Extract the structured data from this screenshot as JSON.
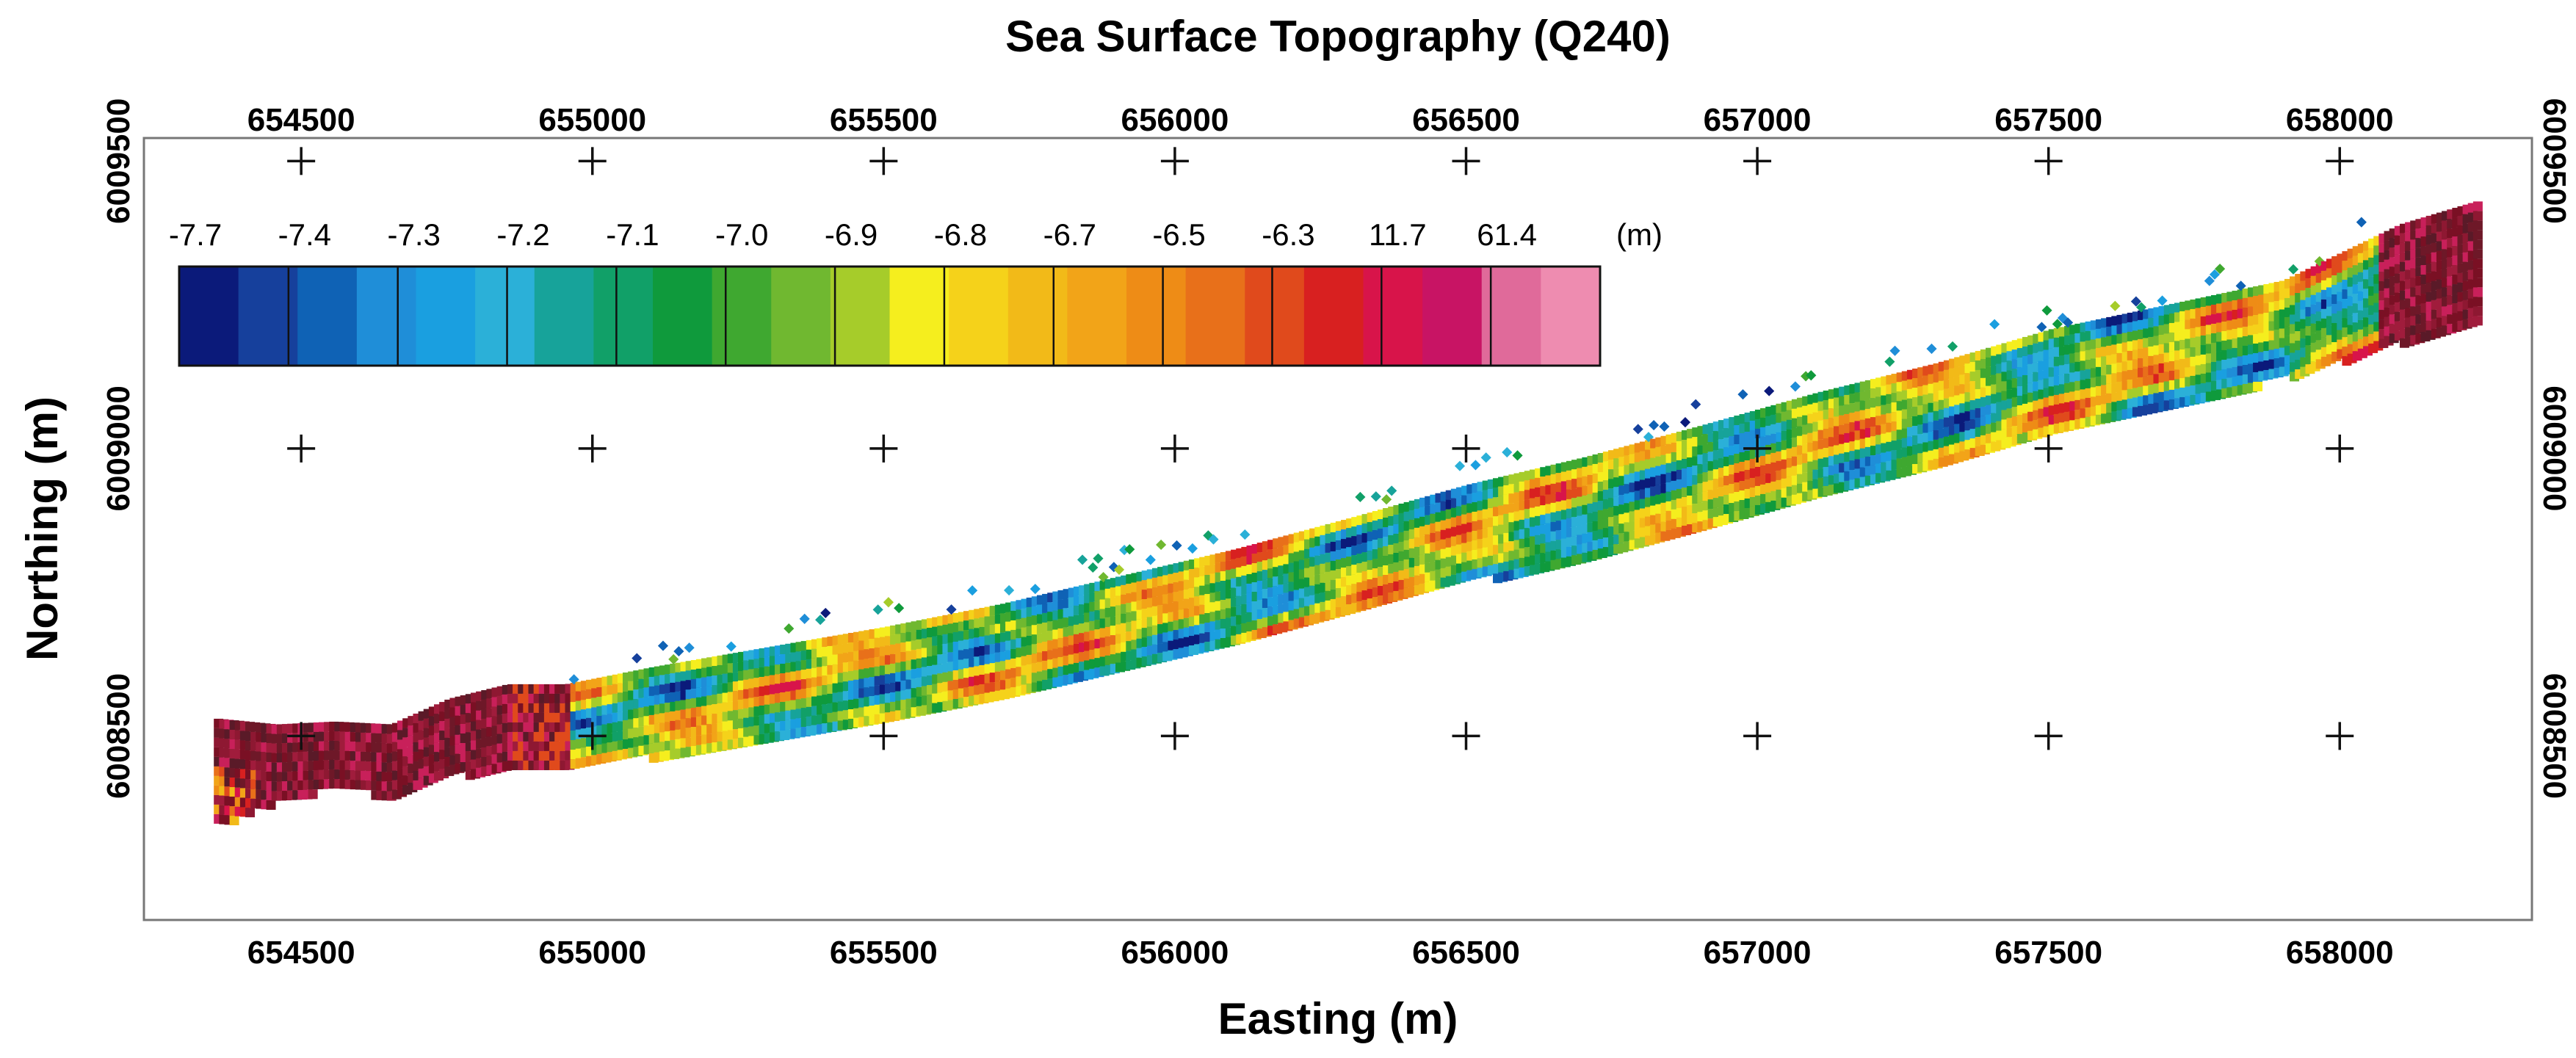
{
  "chart_data": {
    "type": "heatmap",
    "title": "Sea Surface Topography (Q240)",
    "xlabel": "Easting (m)",
    "ylabel": "Northing (m)",
    "xlim": [
      654230,
      658330
    ],
    "ylim": [
      6008180,
      6009540
    ],
    "x_ticks": [
      654500,
      655000,
      655500,
      656000,
      656500,
      657000,
      657500,
      658000
    ],
    "y_ticks": [
      6008500,
      6009000,
      6009500
    ],
    "x_tick_labels": [
      "654500",
      "655000",
      "655500",
      "656000",
      "656500",
      "657000",
      "657500",
      "658000"
    ],
    "y_tick_labels": [
      "6008500",
      "6009000",
      "6009500"
    ],
    "grid_crosses": true,
    "colorbar": {
      "unit": "(m)",
      "position": "top-left",
      "labels": [
        "-7.7",
        "-7.4",
        "-7.3",
        "-7.2",
        "-7.1",
        "-7.0",
        "-6.9",
        "-6.8",
        "-6.7",
        "-6.5",
        "-6.3",
        "11.7",
        "61.4"
      ],
      "colors": [
        "#0b1a7a",
        "#16409c",
        "#0f62b5",
        "#1f8ed8",
        "#1a9fe0",
        "#2bb0d8",
        "#17a39a",
        "#11a068",
        "#0f9a3c",
        "#3fa830",
        "#70b830",
        "#a6cc2a",
        "#f5ee1e",
        "#f5d21a",
        "#f2ba18",
        "#f2a418",
        "#ee8c16",
        "#e8701a",
        "#e04a1c",
        "#d82020",
        "#d8144a",
        "#c81464",
        "#e06a9a",
        "#ee8cb0"
      ]
    },
    "survey_strip": {
      "path_easting": [
        654350,
        654450,
        654550,
        654650,
        654750,
        654850,
        654950,
        655100,
        655300,
        655500,
        655700,
        655900,
        656100,
        656300,
        656500,
        656700,
        656900,
        657100,
        657300,
        657500,
        657700,
        657900,
        658100,
        658230
      ],
      "path_northing": [
        6008440,
        6008455,
        6008470,
        6008460,
        6008500,
        6008520,
        6008520,
        6008545,
        6008580,
        6008615,
        6008655,
        6008700,
        6008745,
        6008800,
        6008855,
        6008900,
        6008955,
        6009010,
        6009060,
        6009120,
        6009165,
        6009210,
        6009290,
        6009330
      ],
      "width_m": [
        180,
        130,
        110,
        120,
        130,
        140,
        140,
        150,
        150,
        150,
        150,
        155,
        160,
        160,
        165,
        170,
        170,
        175,
        175,
        175,
        170,
        165,
        200,
        200
      ]
    }
  }
}
